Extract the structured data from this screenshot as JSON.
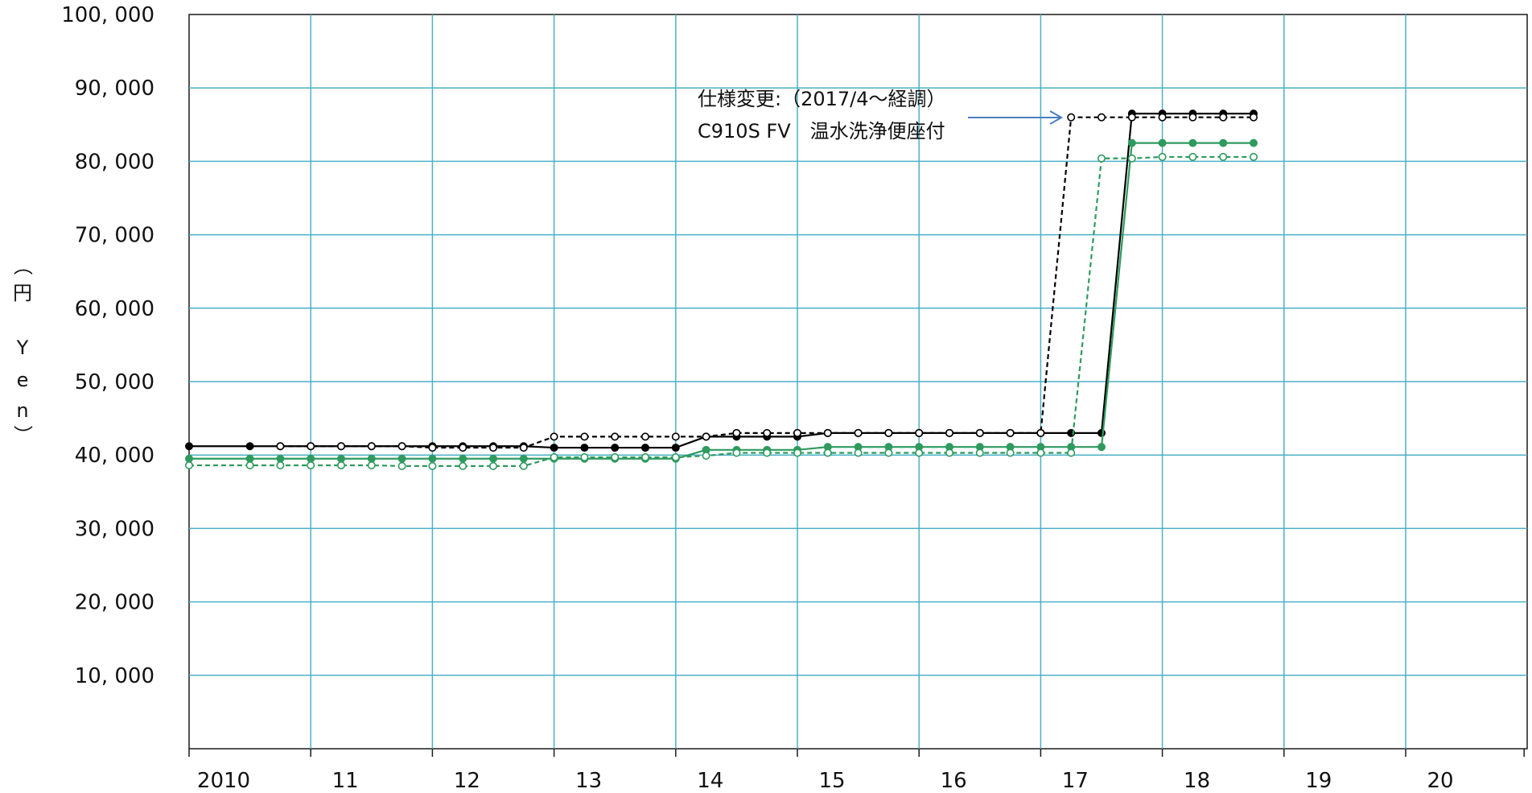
{
  "chart_data": {
    "type": "line",
    "title": "",
    "xlabel": "",
    "ylabel": "（円　Yen）",
    "ylabel_chars": [
      "（",
      "円",
      "Y",
      "e",
      "n",
      "）"
    ],
    "ylim": [
      0,
      100000
    ],
    "xlim": [
      2010,
      2021
    ],
    "yticks": [
      10000,
      20000,
      30000,
      40000,
      50000,
      60000,
      70000,
      80000,
      90000,
      100000
    ],
    "ytick_labels": [
      "10, 000",
      "20, 000",
      "30, 000",
      "40, 000",
      "50, 000",
      "60, 000",
      "70, 000",
      "80, 000",
      "90, 000",
      "100, 000"
    ],
    "xticks": [
      2010,
      2011,
      2012,
      2013,
      2014,
      2015,
      2016,
      2017,
      2018,
      2019,
      2020
    ],
    "xtick_labels": [
      "2010",
      "11",
      "12",
      "13",
      "14",
      "15",
      "16",
      "17",
      "18",
      "19",
      "20"
    ],
    "grid": true,
    "annotation": {
      "line1": "仕様変更:（2017/4～経調）",
      "line2": "C910S FV　温水洗浄便座付",
      "arrow_target": {
        "x": 2017.17,
        "y": 86000
      },
      "arrow_color": "#4a7fc1"
    },
    "series": [
      {
        "color": "#000000",
        "dash": "solid",
        "marker": "filled",
        "x": [
          2010.0,
          2010.5,
          2010.75,
          2011.0,
          2011.25,
          2011.5,
          2011.75,
          2012.0,
          2012.25,
          2012.5,
          2012.75,
          2013.0,
          2013.25,
          2013.5,
          2013.75,
          2014.0,
          2014.25,
          2014.5,
          2014.75,
          2015.0,
          2015.25,
          2015.5,
          2015.75,
          2016.0,
          2016.25,
          2016.5,
          2016.75,
          2017.0,
          2017.25,
          2017.5,
          2017.75,
          2018.0,
          2018.25,
          2018.5,
          2018.75
        ],
        "y": [
          41200,
          41200,
          41200,
          41200,
          41200,
          41200,
          41200,
          41200,
          41200,
          41200,
          41200,
          41000,
          41000,
          41000,
          41000,
          41000,
          42500,
          42500,
          42500,
          42500,
          43000,
          43000,
          43000,
          43000,
          43000,
          43000,
          43000,
          43000,
          43000,
          43000,
          86500,
          86500,
          86500,
          86500,
          86500
        ]
      },
      {
        "color": "#000000",
        "dash": "dashed",
        "marker": "open",
        "x": [
          2010.75,
          2011.0,
          2011.25,
          2011.5,
          2011.75,
          2012.0,
          2012.25,
          2012.5,
          2012.75,
          2013.0,
          2013.25,
          2013.5,
          2013.75,
          2014.0,
          2014.25,
          2014.5,
          2014.75,
          2015.0,
          2015.25,
          2015.5,
          2015.75,
          2016.0,
          2016.25,
          2016.5,
          2016.75,
          2017.0,
          2017.25,
          2017.5,
          2017.75,
          2018.0,
          2018.25,
          2018.5,
          2018.75
        ],
        "y": [
          41200,
          41200,
          41200,
          41200,
          41200,
          41000,
          41000,
          41000,
          41000,
          42500,
          42500,
          42500,
          42500,
          42500,
          42500,
          43000,
          43000,
          43000,
          43000,
          43000,
          43000,
          43000,
          43000,
          43000,
          43000,
          43000,
          86000,
          86000,
          86000,
          86000,
          86000,
          86000,
          86000
        ]
      },
      {
        "color": "#2e9a5e",
        "dash": "solid",
        "marker": "filled",
        "x": [
          2010.0,
          2010.5,
          2010.75,
          2011.0,
          2011.25,
          2011.5,
          2011.75,
          2012.0,
          2012.25,
          2012.5,
          2012.75,
          2013.0,
          2013.25,
          2013.5,
          2013.75,
          2014.0,
          2014.25,
          2014.5,
          2014.75,
          2015.0,
          2015.25,
          2015.5,
          2015.75,
          2016.0,
          2016.25,
          2016.5,
          2016.75,
          2017.0,
          2017.25,
          2017.5,
          2017.75,
          2018.0,
          2018.25,
          2018.5,
          2018.75
        ],
        "y": [
          39500,
          39500,
          39500,
          39500,
          39500,
          39500,
          39500,
          39500,
          39500,
          39500,
          39500,
          39500,
          39500,
          39500,
          39500,
          39500,
          40700,
          40700,
          40700,
          40700,
          41100,
          41100,
          41100,
          41100,
          41100,
          41100,
          41100,
          41100,
          41100,
          41100,
          82500,
          82500,
          82500,
          82500,
          82500
        ]
      },
      {
        "color": "#2e9a5e",
        "dash": "dashed",
        "marker": "open",
        "x": [
          2010.0,
          2010.5,
          2010.75,
          2011.0,
          2011.25,
          2011.5,
          2011.75,
          2012.0,
          2012.25,
          2012.5,
          2012.75,
          2013.0,
          2013.25,
          2013.5,
          2013.75,
          2014.0,
          2014.25,
          2014.5,
          2014.75,
          2015.0,
          2015.25,
          2015.5,
          2015.75,
          2016.0,
          2016.25,
          2016.5,
          2016.75,
          2017.0,
          2017.25,
          2017.5,
          2017.75,
          2018.0,
          2018.25,
          2018.5,
          2018.75
        ],
        "y": [
          38600,
          38600,
          38600,
          38600,
          38600,
          38600,
          38500,
          38500,
          38500,
          38500,
          38500,
          39700,
          39700,
          39700,
          39700,
          39700,
          39900,
          40300,
          40300,
          40300,
          40300,
          40300,
          40300,
          40300,
          40300,
          40300,
          40300,
          40300,
          40300,
          80400,
          80400,
          80600,
          80600,
          80600,
          80600
        ]
      }
    ]
  }
}
